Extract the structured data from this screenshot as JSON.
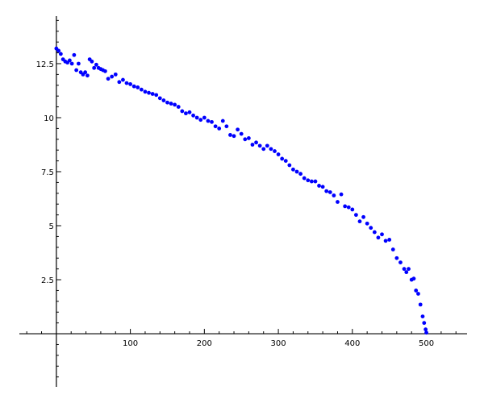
{
  "chart_data": {
    "type": "scatter",
    "title": "",
    "xlabel": "",
    "ylabel": "",
    "xlim": [
      -50,
      555
    ],
    "ylim": [
      -2.46,
      14.7
    ],
    "x_ticks": [
      100,
      200,
      300,
      400,
      500
    ],
    "x_tick_labels": [
      "100",
      "200",
      "300",
      "400",
      "500"
    ],
    "y_ticks": [
      2.5,
      5,
      7.5,
      10,
      12.5
    ],
    "y_tick_labels": [
      "2.5",
      "5",
      "7.5",
      "10",
      "12.5"
    ],
    "grid": false,
    "point_color": "#0000ff",
    "x": [
      0,
      3,
      6,
      9,
      12,
      15,
      18,
      21,
      24,
      27,
      30,
      33,
      36,
      39,
      42,
      45,
      48,
      51,
      54,
      57,
      60,
      63,
      66,
      70,
      75,
      80,
      85,
      90,
      95,
      100,
      105,
      110,
      115,
      120,
      125,
      130,
      135,
      140,
      145,
      150,
      155,
      160,
      165,
      170,
      175,
      180,
      185,
      190,
      195,
      200,
      205,
      210,
      215,
      220,
      225,
      230,
      235,
      240,
      245,
      250,
      255,
      260,
      265,
      270,
      275,
      280,
      285,
      290,
      295,
      300,
      305,
      310,
      315,
      320,
      325,
      330,
      335,
      340,
      345,
      350,
      355,
      360,
      365,
      370,
      375,
      380,
      385,
      390,
      395,
      400,
      405,
      410,
      415,
      420,
      425,
      430,
      435,
      440,
      445,
      450,
      455,
      460,
      465,
      470,
      473,
      476,
      480,
      483,
      486,
      489,
      492,
      495,
      497,
      499,
      500
    ],
    "y": [
      13.2,
      13.1,
      12.95,
      12.7,
      12.6,
      12.55,
      12.65,
      12.5,
      12.9,
      12.2,
      12.5,
      12.1,
      12.0,
      12.1,
      11.95,
      12.7,
      12.6,
      12.3,
      12.45,
      12.3,
      12.25,
      12.2,
      12.15,
      11.8,
      11.9,
      12.0,
      11.65,
      11.75,
      11.6,
      11.55,
      11.45,
      11.4,
      11.3,
      11.2,
      11.15,
      11.1,
      11.05,
      10.9,
      10.8,
      10.7,
      10.65,
      10.6,
      10.5,
      10.3,
      10.2,
      10.25,
      10.1,
      10.0,
      9.9,
      10.0,
      9.85,
      9.8,
      9.6,
      9.5,
      9.85,
      9.6,
      9.2,
      9.15,
      9.45,
      9.25,
      9.0,
      9.05,
      8.75,
      8.85,
      8.7,
      8.55,
      8.7,
      8.55,
      8.45,
      8.3,
      8.1,
      8.0,
      7.8,
      7.6,
      7.5,
      7.4,
      7.2,
      7.1,
      7.05,
      7.05,
      6.85,
      6.8,
      6.6,
      6.55,
      6.4,
      6.1,
      6.45,
      5.9,
      5.85,
      5.75,
      5.5,
      5.2,
      5.4,
      5.1,
      4.9,
      4.7,
      4.45,
      4.6,
      4.3,
      4.35,
      3.9,
      3.5,
      3.3,
      3.0,
      2.85,
      3.0,
      2.5,
      2.55,
      2.0,
      1.85,
      1.35,
      0.8,
      0.5,
      0.2,
      0.05
    ]
  }
}
